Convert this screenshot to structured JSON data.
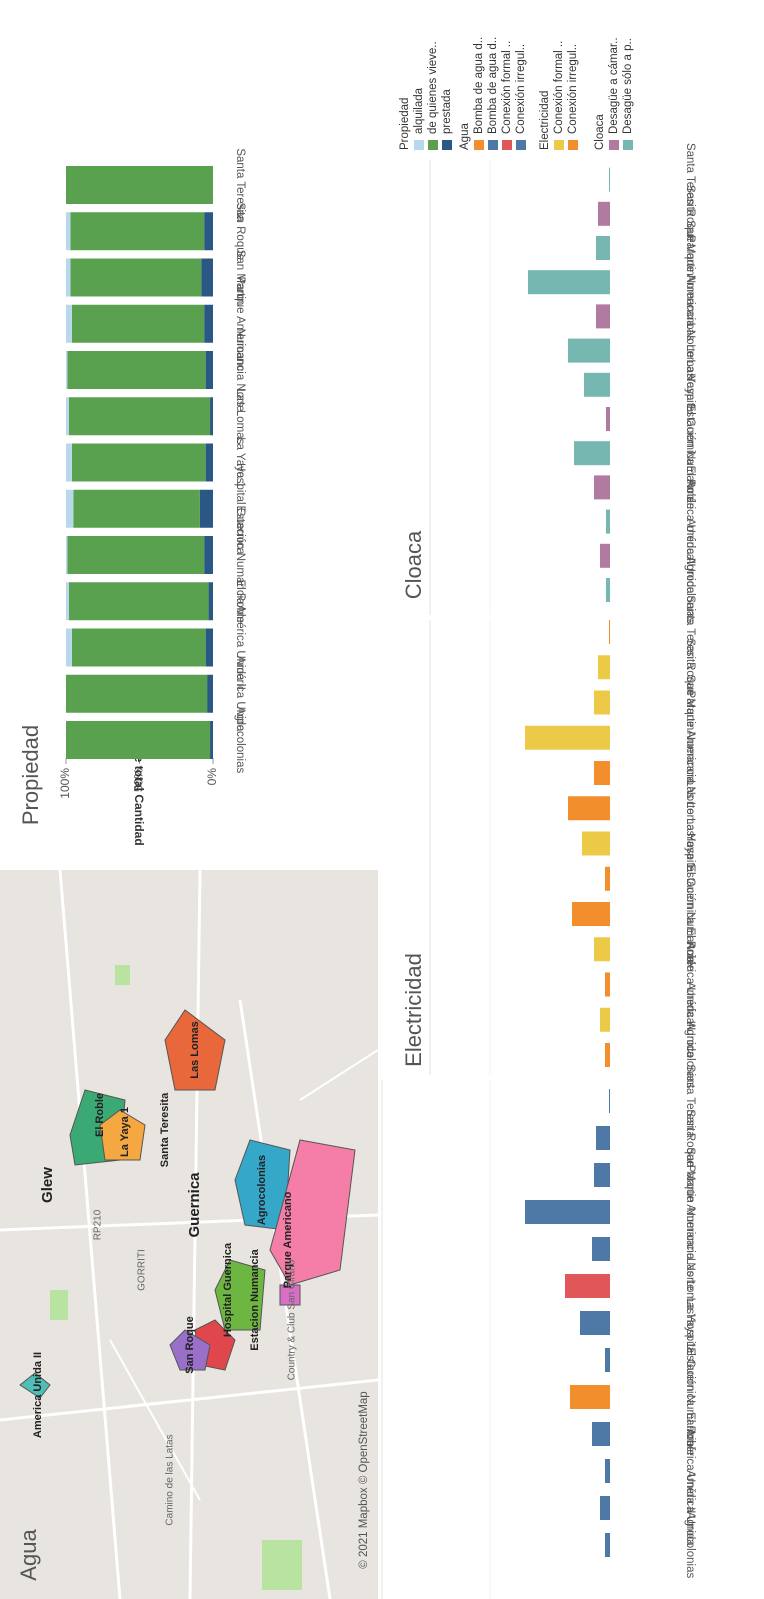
{
  "chart_data": [
    {
      "type": "stacked-bar",
      "title": "Propiedad",
      "axis_label": "% de total Cantidad",
      "legend_title": "Propiedad",
      "categories": [
        "Agrocolonias",
        "América Unida",
        "América Unida II",
        "El Roble",
        "Estación Numancia",
        "Hospital Guernica",
        "La Yaya 1",
        "Las Lomas",
        "Numancia Norte",
        "Parque Americano",
        "San Martin",
        "San Roque",
        "Santa Teresita"
      ],
      "series": [
        {
          "name": "alquilada",
          "color": "#b9d8ee",
          "values": [
            0,
            0,
            4,
            2,
            1,
            5,
            4,
            2,
            1,
            4,
            3,
            3,
            0
          ]
        },
        {
          "name": "de quienes vieve..",
          "color": "#59a14f",
          "values": [
            98,
            96,
            91,
            95,
            93,
            86,
            91,
            96,
            94,
            90,
            89,
            91,
            100
          ]
        },
        {
          "name": "prestada",
          "color": "#2a5783",
          "values": [
            2,
            4,
            5,
            3,
            6,
            9,
            5,
            2,
            5,
            6,
            8,
            6,
            0
          ]
        }
      ],
      "xlim": [
        0,
        100
      ],
      "xticks": [
        {
          "value": 0,
          "label": "0%"
        },
        {
          "value": 50,
          "label": "50%"
        },
        {
          "value": 100,
          "label": "100%"
        }
      ]
    },
    {
      "type": "bar",
      "title": "Agua",
      "categories": [
        "Agrocolonias",
        "América Unida",
        "América Unida II",
        "El Roble",
        "Estación Numancia",
        "Hospital Guernica",
        "La Yaya 1",
        "Las Lomas",
        "Numancia Norte",
        "Parque Americano",
        "San Martin",
        "San Roque",
        "Santa Teresita"
      ],
      "values": [
        5,
        10,
        5,
        18,
        40,
        5,
        30,
        45,
        18,
        85,
        16,
        14,
        1
      ],
      "colors": [
        "#4e79a7",
        "#4e79a7",
        "#4e79a7",
        "#4e79a7",
        "#f28e2b",
        "#4e79a7",
        "#4e79a7",
        "#e15759",
        "#4e79a7",
        "#4e79a7",
        "#4e79a7",
        "#4e79a7",
        "#4e79a7"
      ],
      "legend": {
        "title": "Agua",
        "items": [
          {
            "name": "Bomba de agua d..",
            "color": "#f28e2b"
          },
          {
            "name": "Bomba de agua d..",
            "color": "#4e79a7"
          },
          {
            "name": "Conexión formal ..",
            "color": "#e15759"
          },
          {
            "name": "Conexión irregul..",
            "color": "#4e79a7"
          }
        ]
      }
    },
    {
      "type": "bar",
      "title": "Electricidad",
      "categories": [
        "Agrocolonias",
        "América Unida",
        "América Unida II",
        "El Roble",
        "Estación Numancia",
        "Hospital Guernica",
        "La Yaya 1",
        "Las Lomas",
        "Numancia Norte",
        "Parque Americano",
        "San Martin",
        "San Roque",
        "Santa Teresita"
      ],
      "values": [
        5,
        10,
        5,
        16,
        38,
        5,
        28,
        42,
        16,
        85,
        16,
        12,
        1
      ],
      "colors": [
        "#f28e2b",
        "#edc948",
        "#f28e2b",
        "#edc948",
        "#f28e2b",
        "#f28e2b",
        "#edc948",
        "#f28e2b",
        "#f28e2b",
        "#edc948",
        "#edc948",
        "#edc948",
        "#f28e2b"
      ],
      "legend": {
        "title": "Electricidad",
        "items": [
          {
            "name": "Conexión formal ..",
            "color": "#edc948"
          },
          {
            "name": "Conexión irregul..",
            "color": "#f28e2b"
          }
        ]
      }
    },
    {
      "type": "bar",
      "title": "Cloaca",
      "categories": [
        "Agrocolonias",
        "América Unida",
        "América Unida II",
        "El Roble",
        "Estación Numancia",
        "Hospital Guernica",
        "La Yaya 1",
        "Las Lomas",
        "Numancia Norte",
        "Parque Americano",
        "San Martin",
        "San Roque",
        "Santa Teresita"
      ],
      "values": [
        4,
        10,
        4,
        16,
        36,
        4,
        26,
        42,
        14,
        82,
        14,
        12,
        1
      ],
      "colors": [
        "#76b7b2",
        "#b07aa1",
        "#76b7b2",
        "#b07aa1",
        "#76b7b2",
        "#b07aa1",
        "#76b7b2",
        "#76b7b2",
        "#b07aa1",
        "#76b7b2",
        "#76b7b2",
        "#b07aa1",
        "#76b7b2"
      ],
      "legend": {
        "title": "Cloaca",
        "items": [
          {
            "name": "Desagüe a cámar..",
            "color": "#b07aa1"
          },
          {
            "name": "Desagüe sólo a p..",
            "color": "#76b7b2"
          }
        ]
      }
    }
  ],
  "map": {
    "labels": [
      "Glew",
      "Guernica",
      "El Roble",
      "La Yaya 1",
      "Santa Teresita",
      "Las Lomas",
      "Agrocolonias",
      "Parque Americano",
      "Estacion Numancia",
      "Hospital Guernica",
      "San Roque",
      "America Unida II",
      "Country & Club San Cirano",
      "GORRITI",
      "Camino de las Latas",
      "RP210"
    ],
    "attribution": "© 2021 Mapbox © OpenStreetMap"
  }
}
